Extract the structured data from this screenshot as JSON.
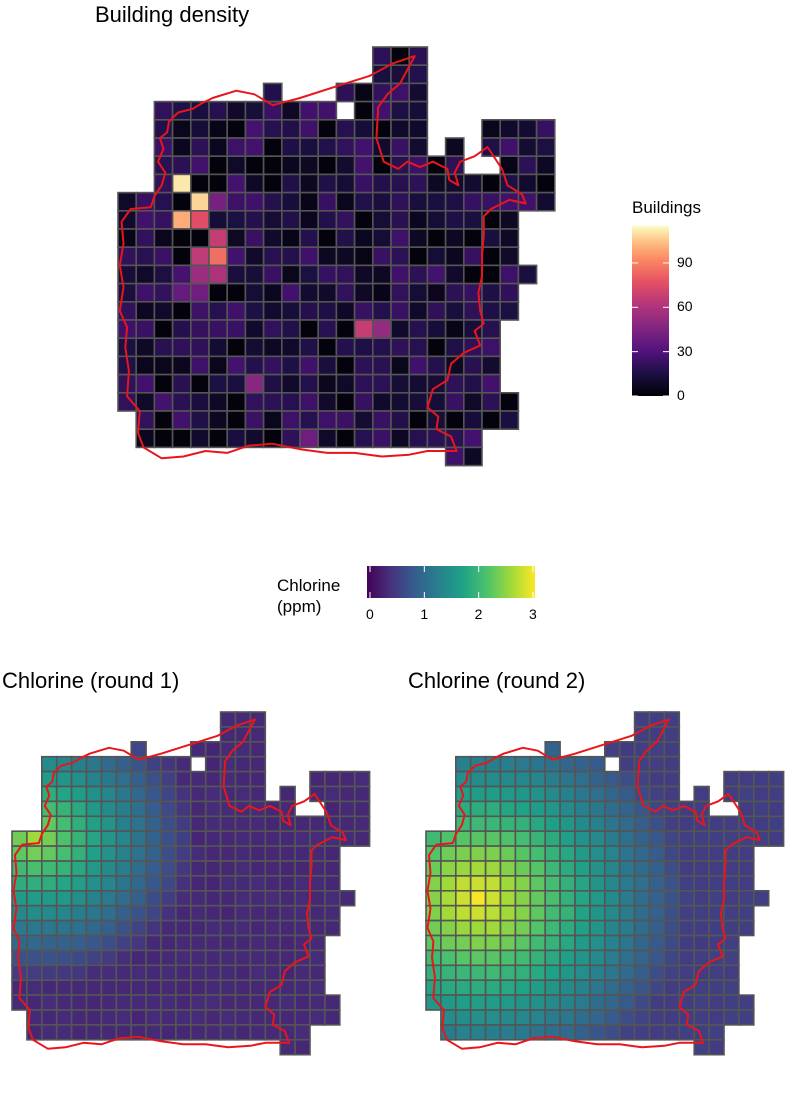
{
  "panels": {
    "density": {
      "title": "Building density"
    },
    "round1": {
      "title": "Chlorine (round 1)"
    },
    "round2": {
      "title": "Chlorine (round 2)"
    }
  },
  "buildings_legend": {
    "title": "Buildings",
    "ticks": [
      "90",
      "60",
      "30",
      "0"
    ],
    "tick_values": [
      90,
      60,
      30,
      0
    ],
    "max": 115,
    "palette": "magma"
  },
  "chlorine_legend": {
    "title_line1": "Chlorine",
    "title_line2": "(ppm)",
    "ticks": [
      "0",
      "1",
      "2",
      "3"
    ],
    "tick_values": [
      0,
      1,
      2,
      3
    ],
    "range": [
      0,
      3
    ],
    "palette": "viridis"
  },
  "colors": {
    "boundary": "#e8161b",
    "grid_line": "#555555"
  }
}
